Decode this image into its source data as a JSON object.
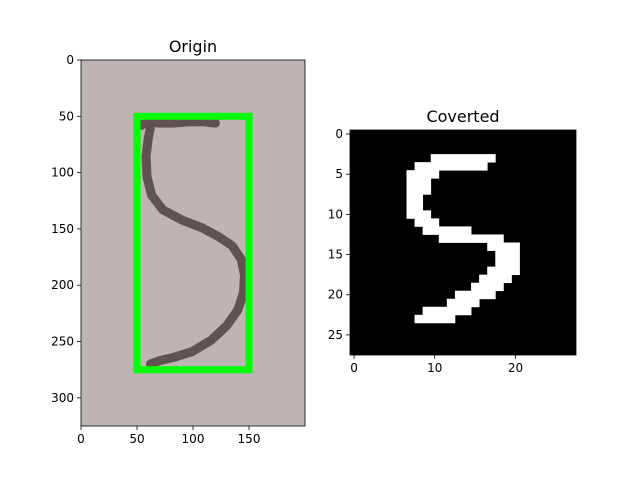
{
  "chart_data": [
    {
      "type": "image",
      "title": "Origin",
      "xlim": [
        0,
        200
      ],
      "ylim": [
        325,
        0
      ],
      "xticks": [
        0,
        50,
        100,
        150
      ],
      "yticks": [
        0,
        50,
        100,
        150,
        200,
        250,
        300
      ],
      "background_color": "#bdb4b4",
      "stroke_color": "#5a4e4c",
      "box_color": "#00ff00",
      "bounding_box": {
        "x0": 50,
        "y0": 50,
        "x1": 150,
        "y1": 275
      },
      "stroke_paths": [
        [
          [
            54,
            58
          ],
          [
            59,
            55
          ],
          [
            70,
            56
          ],
          [
            82,
            56
          ],
          [
            96,
            55
          ],
          [
            110,
            55
          ],
          [
            120,
            56
          ]
        ],
        [
          [
            62,
            60
          ],
          [
            60,
            70
          ],
          [
            58,
            86
          ],
          [
            59,
            104
          ],
          [
            63,
            120
          ],
          [
            73,
            133
          ],
          [
            90,
            142
          ],
          [
            108,
            149
          ],
          [
            123,
            157
          ],
          [
            135,
            165
          ],
          [
            143,
            177
          ],
          [
            146,
            191
          ],
          [
            145,
            207
          ],
          [
            140,
            222
          ],
          [
            130,
            236
          ],
          [
            116,
            249
          ],
          [
            99,
            259
          ],
          [
            83,
            264
          ],
          [
            70,
            267
          ],
          [
            62,
            270
          ]
        ]
      ]
    },
    {
      "type": "heatmap",
      "title": "Coverted",
      "xlim": [
        0,
        27
      ],
      "ylim": [
        27,
        0
      ],
      "xticks": [
        0,
        10,
        20
      ],
      "yticks": [
        0,
        5,
        10,
        15,
        20,
        25
      ],
      "background_color": "#000000",
      "pixel_color": "#ffffff",
      "white_pixel_rows": [
        [
          3,
          10,
          17
        ],
        [
          4,
          8,
          16
        ],
        [
          5,
          7,
          10
        ],
        [
          6,
          7,
          9
        ],
        [
          7,
          7,
          9
        ],
        [
          8,
          7,
          8
        ],
        [
          9,
          7,
          8
        ],
        [
          10,
          7,
          9
        ],
        [
          11,
          8,
          10
        ],
        [
          12,
          9,
          14
        ],
        [
          13,
          11,
          18
        ],
        [
          14,
          17,
          20
        ],
        [
          15,
          18,
          20
        ],
        [
          16,
          18,
          20
        ],
        [
          17,
          17,
          20
        ],
        [
          18,
          16,
          19
        ],
        [
          19,
          15,
          18
        ],
        [
          20,
          13,
          17
        ],
        [
          21,
          12,
          15
        ],
        [
          22,
          9,
          14
        ],
        [
          23,
          8,
          12
        ]
      ]
    }
  ]
}
